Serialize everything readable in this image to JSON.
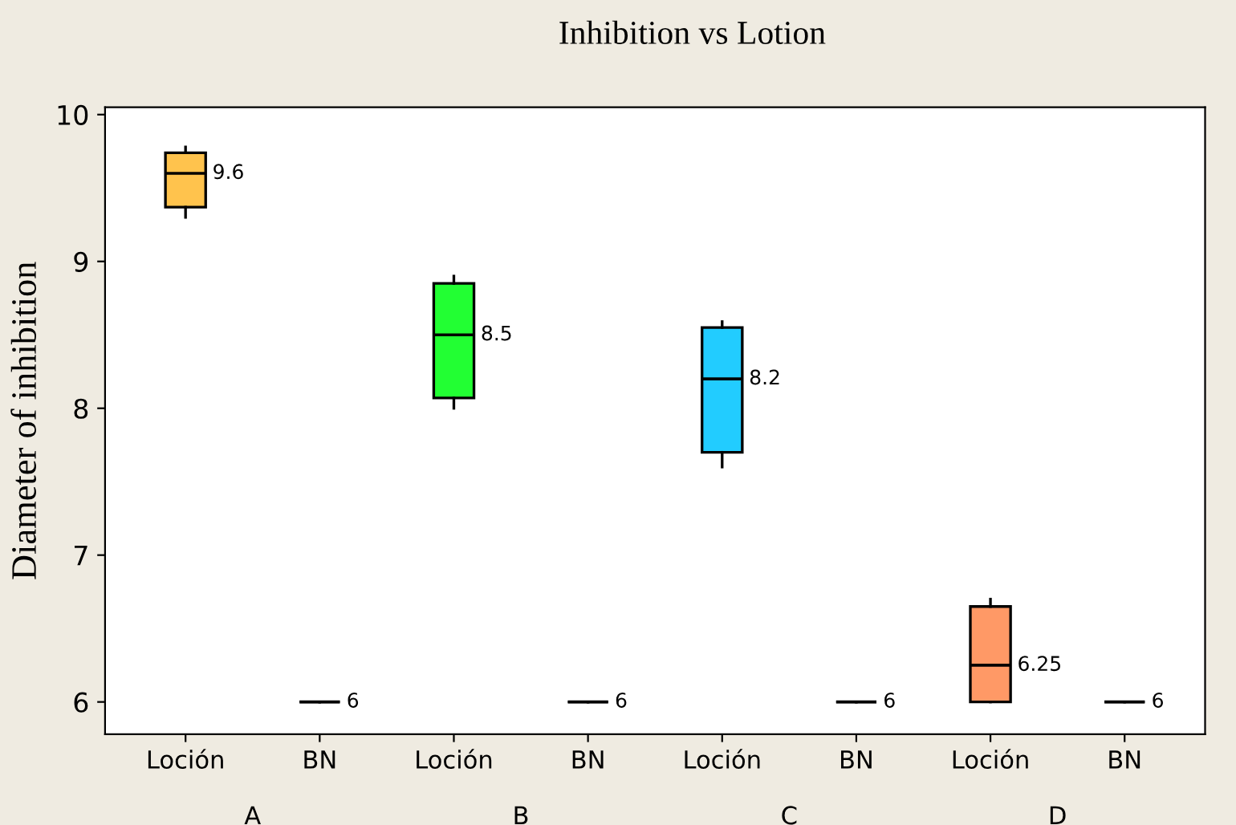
{
  "chart_data": {
    "type": "box",
    "title": "Inhibition vs Lotion",
    "ylabel": "Diameter of inhibition",
    "categories": [
      "Loción",
      "BN",
      "Loción",
      "BN",
      "Loción",
      "BN",
      "Loción",
      "BN"
    ],
    "boxes": [
      {
        "low": 9.3,
        "q1": 9.37,
        "median": 9.6,
        "q3": 9.74,
        "high": 9.78
      },
      {
        "low": 6,
        "q1": 6,
        "median": 6,
        "q3": 6,
        "high": 6
      },
      {
        "low": 8.0,
        "q1": 8.07,
        "median": 8.5,
        "q3": 8.85,
        "high": 8.9
      },
      {
        "low": 6,
        "q1": 6,
        "median": 6,
        "q3": 6,
        "high": 6
      },
      {
        "low": 7.6,
        "q1": 7.7,
        "median": 8.2,
        "q3": 8.55,
        "high": 8.59
      },
      {
        "low": 6,
        "q1": 6,
        "median": 6,
        "q3": 6,
        "high": 6
      },
      {
        "low": 6.0,
        "q1": 6.0,
        "median": 6.25,
        "q3": 6.65,
        "high": 6.7
      },
      {
        "low": 6,
        "q1": 6,
        "median": 6,
        "q3": 6,
        "high": 6
      }
    ],
    "colors": [
      "#ffc34d",
      null,
      "#22ff33",
      null,
      "#22ccff",
      null,
      "#ff9966",
      null
    ],
    "value_labels": [
      "9.6",
      "6",
      "8.5",
      "6",
      "8.2",
      "6",
      "6.25",
      "6"
    ],
    "annotations": [
      "A",
      "B",
      "C",
      "D"
    ],
    "ylim": [
      5.78,
      10.05
    ],
    "yticks": [
      6,
      7,
      8,
      9,
      10
    ],
    "grid": false,
    "legend": false
  }
}
